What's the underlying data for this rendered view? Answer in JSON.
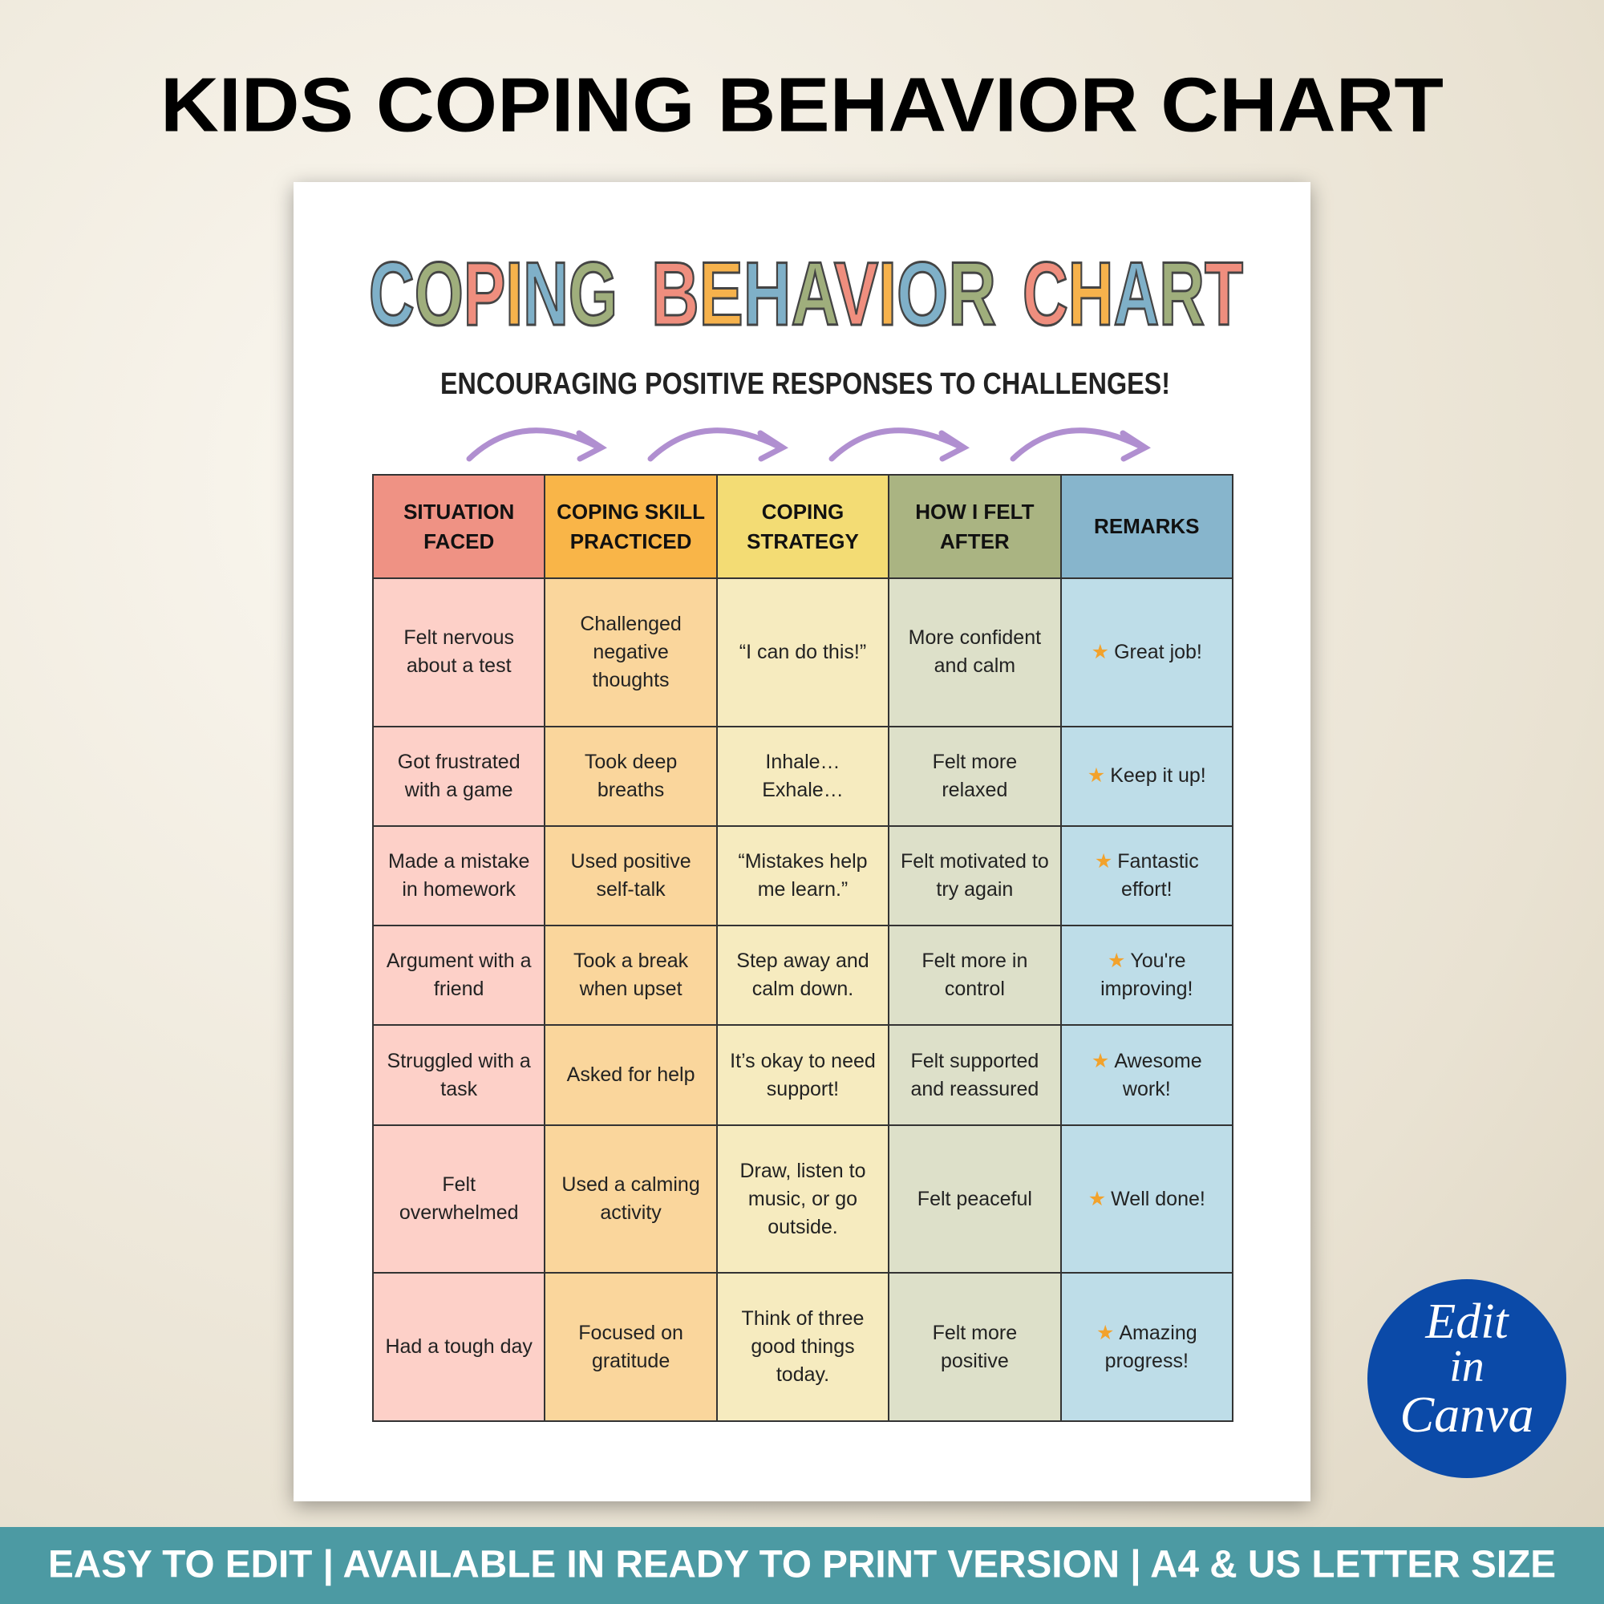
{
  "header": {
    "title": "KIDS COPING BEHAVIOR CHART"
  },
  "document": {
    "title_words": [
      "COPING",
      "BEHAVIOR",
      "CHART"
    ],
    "subtitle": "ENCOURAGING POSITIVE RESPONSES TO CHALLENGES!"
  },
  "table": {
    "header": [
      "SITUATION FACED",
      "COPING SKILL PRACTICED",
      "COPING STRATEGY",
      "HOW I FELT AFTER",
      "REMARKS"
    ],
    "rows": [
      [
        "Felt nervous about a test",
        "Challenged negative thoughts",
        "“I can do this!”",
        "More confident and calm",
        "Great job!"
      ],
      [
        "Got frustrated with a game",
        "Took deep breaths",
        "Inhale… Exhale…",
        "Felt more relaxed",
        "Keep it up!"
      ],
      [
        "Made a mistake in homework",
        "Used positive self-talk",
        "“Mistakes help me learn.”",
        "Felt motivated to try again",
        "Fantastic effort!"
      ],
      [
        "Argument with a friend",
        "Took a break when upset",
        "Step away and calm down.",
        "Felt more in control",
        "You're improving!"
      ],
      [
        "Struggled with a task",
        "Asked for help",
        "It’s okay to need support!",
        "Felt supported and reassured",
        "Awesome work!"
      ],
      [
        "Felt overwhelmed",
        "Used a calming activity",
        "Draw, listen to music, or go outside.",
        "Felt peaceful",
        "Well done!"
      ],
      [
        "Had a tough day",
        "Focused on gratitude",
        "Think of three good things today.",
        "Felt more positive",
        "Amazing progress!"
      ]
    ]
  },
  "badge": [
    "Edit",
    "in",
    "Canva"
  ],
  "banner": "EASY TO EDIT | AVAILABLE IN READY TO PRINT VERSION | A4 & US LETTER SIZE"
}
